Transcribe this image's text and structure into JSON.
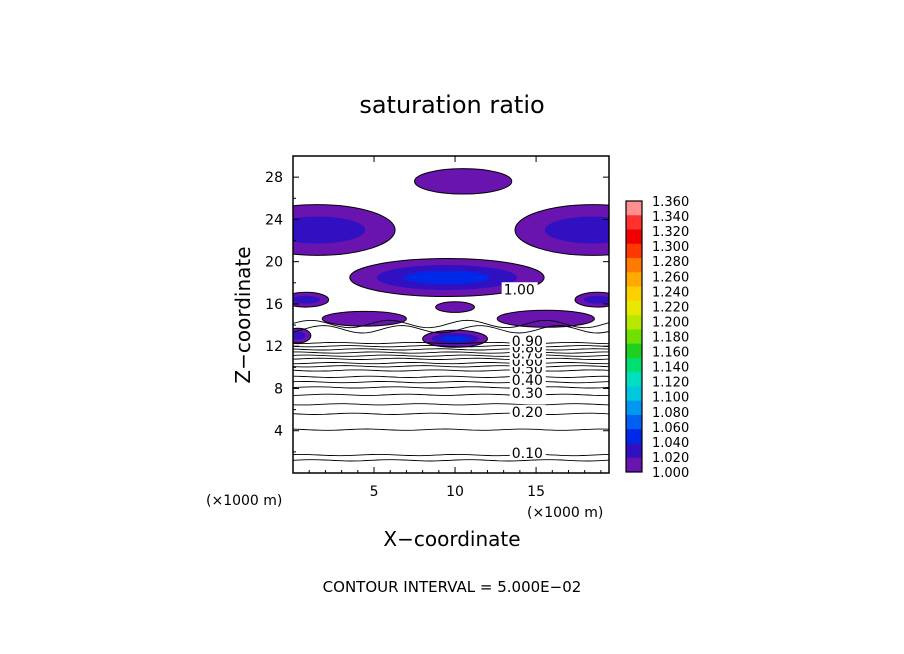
{
  "chart_data": {
    "type": "contour",
    "title": "saturation ratio",
    "xlabel": "X−coordinate",
    "ylabel": "Z−coordinate",
    "x_unit": "(×1000 m)",
    "z_unit": "(×1000 m)",
    "xlim": [
      0,
      19.5
    ],
    "ylim": [
      0,
      30
    ],
    "x_ticks": [
      5,
      10,
      15
    ],
    "x_tick_labels": [
      "5",
      "10",
      "15"
    ],
    "y_ticks": [
      4,
      8,
      12,
      16,
      20,
      24,
      28
    ],
    "y_tick_labels": [
      "4",
      "8",
      "12",
      "16",
      "20",
      "24",
      "28"
    ],
    "contour_interval_text": "CONTOUR INTERVAL = 5.000E−02",
    "contour_labels": [
      {
        "text": "0.10",
        "x": 13.5,
        "z": 1.7
      },
      {
        "text": "0.20",
        "x": 13.5,
        "z": 5.6
      },
      {
        "text": "0.30",
        "x": 13.5,
        "z": 7.4
      },
      {
        "text": "0.40",
        "x": 13.5,
        "z": 8.6
      },
      {
        "text": "0.50",
        "x": 13.5,
        "z": 9.7
      },
      {
        "text": "0.60",
        "x": 13.5,
        "z": 10.4
      },
      {
        "text": "0.70",
        "x": 13.5,
        "z": 11.1
      },
      {
        "text": "0.80",
        "x": 13.5,
        "z": 11.7
      },
      {
        "text": "0.90",
        "x": 13.5,
        "z": 12.3
      },
      {
        "text": "1.00",
        "x": 13.0,
        "z": 17.2
      }
    ],
    "colorbar": {
      "min": 1.0,
      "max": 1.36,
      "step": 0.02,
      "labels": [
        "1.360",
        "1.340",
        "1.320",
        "1.300",
        "1.280",
        "1.260",
        "1.240",
        "1.220",
        "1.200",
        "1.180",
        "1.160",
        "1.140",
        "1.120",
        "1.100",
        "1.080",
        "1.060",
        "1.040",
        "1.020",
        "1.000"
      ],
      "colors": [
        "#ff9090",
        "#ff3030",
        "#f00000",
        "#ff3800",
        "#ff7a00",
        "#ffaa00",
        "#ffd000",
        "#e8e800",
        "#b8e800",
        "#70e000",
        "#20d020",
        "#00e070",
        "#00e0c0",
        "#00c8e0",
        "#0098f0",
        "#0060f0",
        "#0028e8",
        "#3010c0",
        "#6a14b0"
      ]
    },
    "supersaturated_regions": [
      {
        "x_center": 10.5,
        "z_center": 27.6,
        "x_halfwidth": 3.0,
        "z_halfwidth": 1.2,
        "peak": 1.01
      },
      {
        "x_center": 1.5,
        "z_center": 23.0,
        "x_halfwidth": 4.8,
        "z_halfwidth": 2.4,
        "peak": 1.04
      },
      {
        "x_center": 18.5,
        "z_center": 23.0,
        "x_halfwidth": 4.8,
        "z_halfwidth": 2.4,
        "peak": 1.04
      },
      {
        "x_center": 9.5,
        "z_center": 18.5,
        "x_halfwidth": 6.0,
        "z_halfwidth": 1.8,
        "peak": 1.06
      },
      {
        "x_center": 0.8,
        "z_center": 16.4,
        "x_halfwidth": 1.4,
        "z_halfwidth": 0.7,
        "peak": 1.03
      },
      {
        "x_center": 18.8,
        "z_center": 16.4,
        "x_halfwidth": 1.4,
        "z_halfwidth": 0.7,
        "peak": 1.03
      },
      {
        "x_center": 10.0,
        "z_center": 15.7,
        "x_halfwidth": 1.2,
        "z_halfwidth": 0.5,
        "peak": 1.01
      },
      {
        "x_center": 4.4,
        "z_center": 14.6,
        "x_halfwidth": 2.6,
        "z_halfwidth": 0.7,
        "peak": 1.02
      },
      {
        "x_center": 15.6,
        "z_center": 14.6,
        "x_halfwidth": 3.0,
        "z_halfwidth": 0.8,
        "peak": 1.02
      },
      {
        "x_center": 0.3,
        "z_center": 13.0,
        "x_halfwidth": 0.8,
        "z_halfwidth": 0.7,
        "peak": 1.03
      },
      {
        "x_center": 10.0,
        "z_center": 12.7,
        "x_halfwidth": 2.0,
        "z_halfwidth": 0.8,
        "peak": 1.06
      }
    ],
    "subsaturated_contour_levels_z": [
      1.2,
      1.7,
      4.1,
      5.6,
      6.5,
      7.4,
      8.1,
      8.6,
      9.1,
      9.7,
      10.1,
      10.4,
      10.8,
      11.1,
      11.4,
      11.7,
      12.0,
      12.3,
      13.6,
      14.1
    ]
  }
}
